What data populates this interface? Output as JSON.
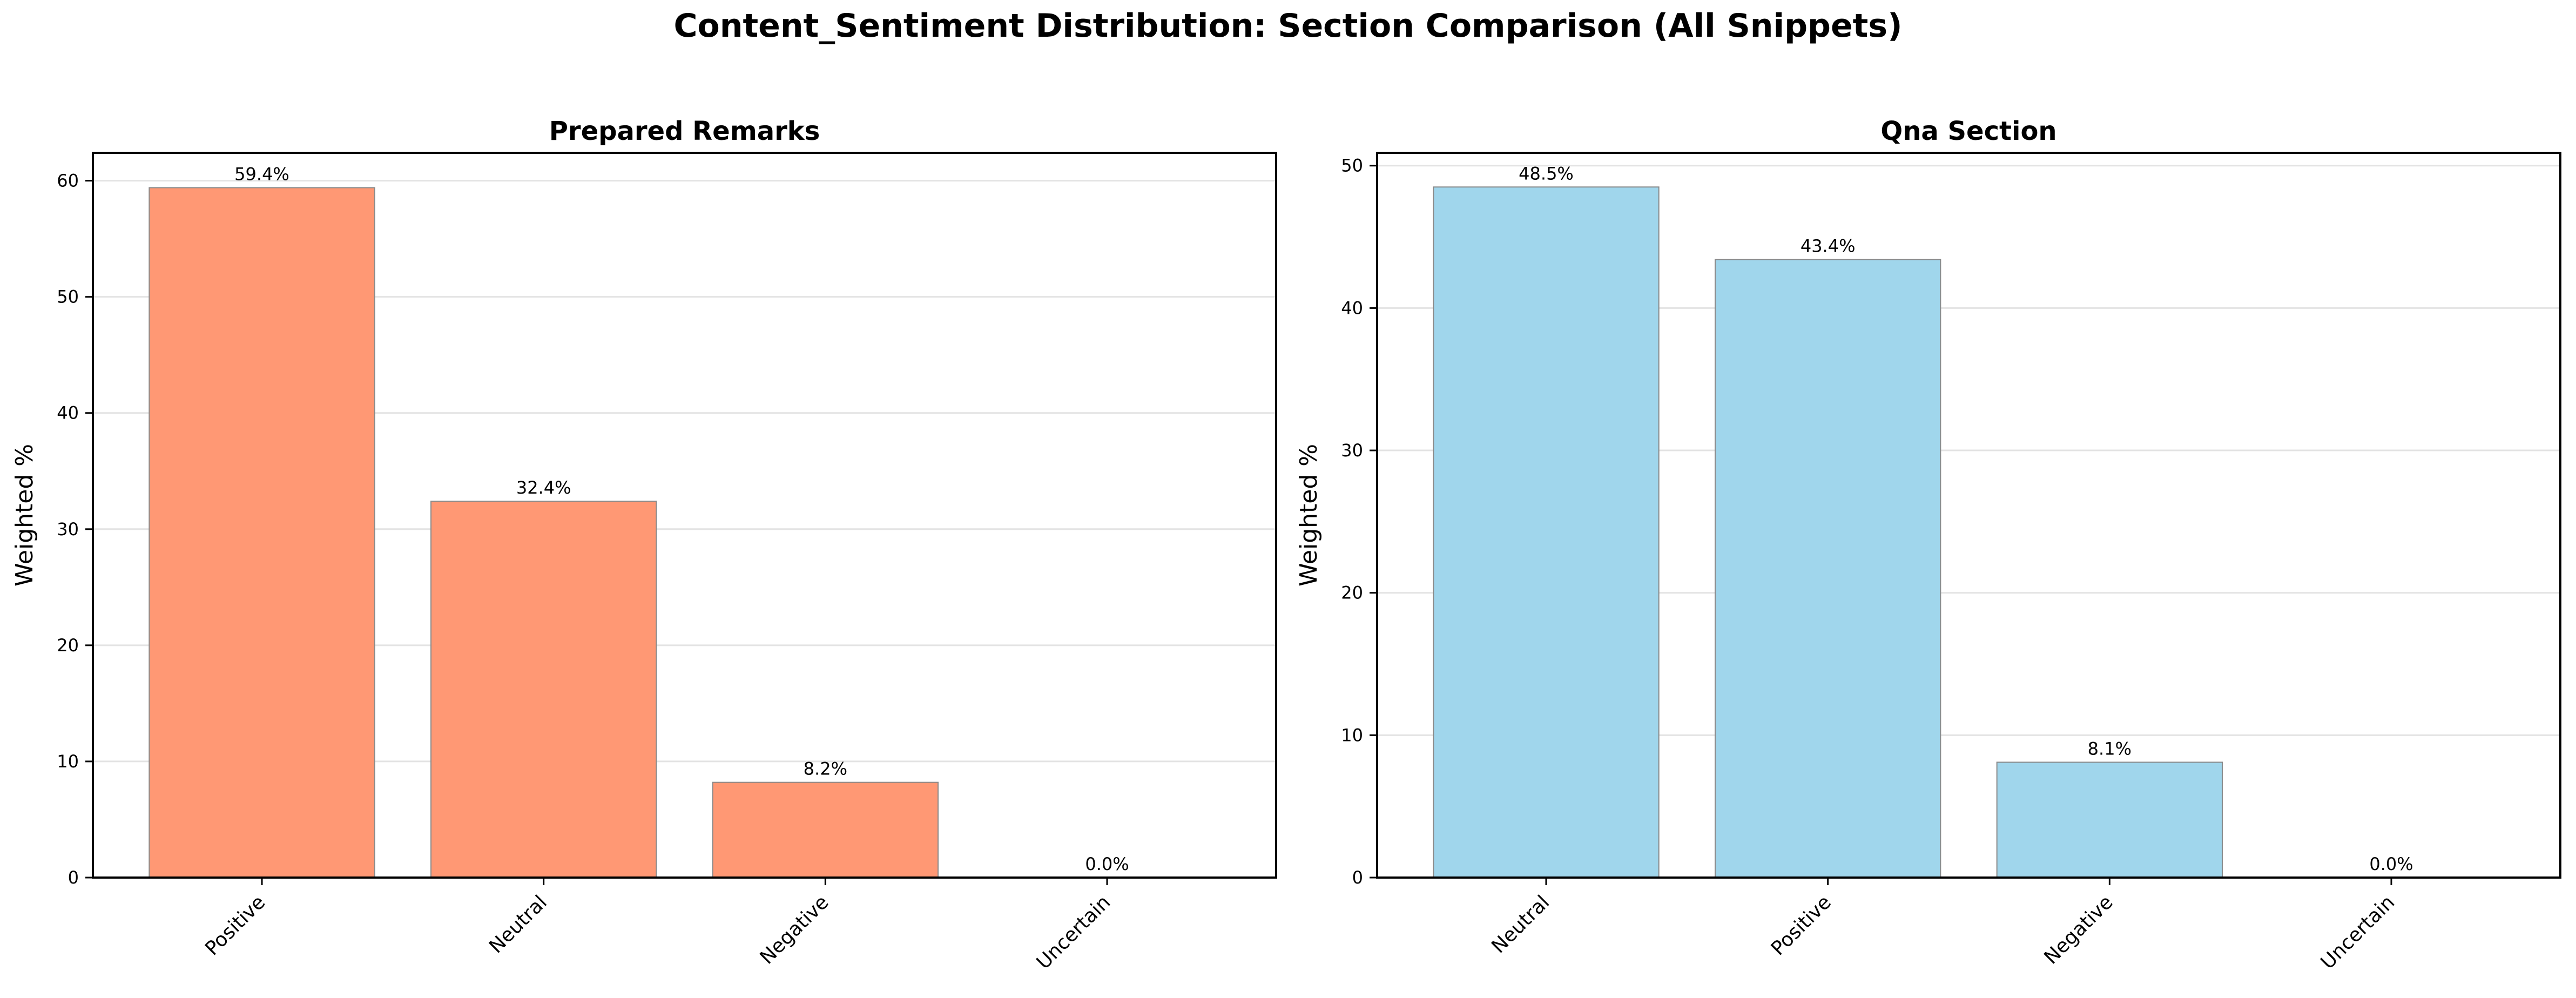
{
  "suptitle": "Content_Sentiment Distribution: Section Comparison (All Snippets)",
  "chart_data": [
    {
      "type": "bar",
      "title": "Prepared Remarks",
      "xlabel": "",
      "ylabel": "Weighted %",
      "categories": [
        "Positive",
        "Neutral",
        "Negative",
        "Uncertain"
      ],
      "values": [
        59.4,
        32.4,
        8.2,
        0.0
      ],
      "value_labels": [
        "59.4%",
        "32.4%",
        "8.2%",
        "0.0%"
      ],
      "ylim": [
        0,
        62.4
      ],
      "yticks": [
        0,
        10,
        20,
        30,
        40,
        50,
        60
      ],
      "grid": "y",
      "bar_color": "#ff9874"
    },
    {
      "type": "bar",
      "title": "Qna Section",
      "xlabel": "",
      "ylabel": "Weighted %",
      "categories": [
        "Neutral",
        "Positive",
        "Negative",
        "Uncertain"
      ],
      "values": [
        48.5,
        43.4,
        8.1,
        0.0
      ],
      "value_labels": [
        "48.5%",
        "43.4%",
        "8.1%",
        "0.0%"
      ],
      "ylim": [
        0,
        50.9
      ],
      "yticks": [
        0,
        10,
        20,
        30,
        40,
        50
      ],
      "grid": "y",
      "bar_color": "#a0d6ec"
    }
  ]
}
